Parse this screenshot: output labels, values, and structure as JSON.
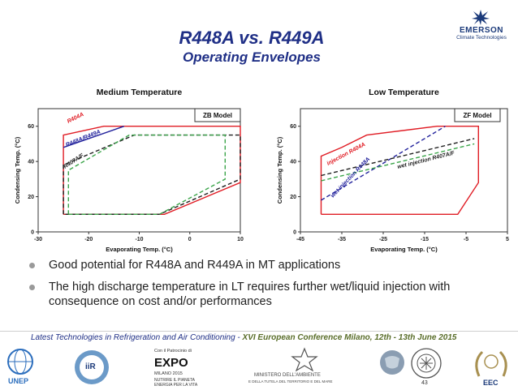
{
  "header": {
    "title": "R448A vs. R449A",
    "subtitle": "Operating Envelopes",
    "logo_name": "EMERSON",
    "logo_sub": "Climate Technologies",
    "brand_color": "#1b3a7a"
  },
  "chart_data": [
    {
      "type": "line",
      "title": "Medium Temperature",
      "model_label": "ZB Model",
      "xlabel": "Evaporating Temp. (°C)",
      "ylabel": "Condensing Temp. (°C)",
      "xlim": [
        -30,
        10
      ],
      "ylim": [
        0,
        70
      ],
      "xticks": [
        -30,
        -20,
        -10,
        0,
        10
      ],
      "yticks": [
        0,
        20,
        40,
        60
      ],
      "grid": false,
      "series": [
        {
          "name": "R404A",
          "color": "#e01c24",
          "dash": "solid",
          "x": [
            -25,
            -25,
            -17,
            10,
            10,
            -5,
            -25
          ],
          "y": [
            10,
            55,
            60,
            60,
            28,
            10,
            10
          ]
        },
        {
          "name": "R448A/R449A",
          "color": "#22229c",
          "dash": "solid",
          "x": [
            -25,
            -13
          ],
          "y": [
            48,
            60
          ]
        },
        {
          "name": "R407A/F",
          "color": "#1f1f1f",
          "dash": "dashed",
          "x": [
            -25,
            -25,
            -11,
            10,
            10,
            -6,
            -25
          ],
          "y": [
            10,
            38,
            55,
            55,
            30,
            10,
            10
          ]
        },
        {
          "name": "",
          "color": "#3ba54a",
          "dash": "dashed",
          "x": [
            -24,
            -24,
            -12,
            7,
            7,
            -6,
            -24
          ],
          "y": [
            10,
            35,
            55,
            55,
            30,
            10,
            10
          ]
        }
      ],
      "annotations": [
        {
          "text": "R404A",
          "color": "#e01c24"
        },
        {
          "text": "R448A/R449A",
          "color": "#22229c"
        },
        {
          "text": "R407A/F",
          "color": "#1f1f1f"
        }
      ]
    },
    {
      "type": "line",
      "title": "Low Temperature",
      "model_label": "ZF Model",
      "xlabel": "Evaporating Temp. (°C)",
      "ylabel": "Condensing Temp. (°C)",
      "xlim": [
        -45,
        5
      ],
      "ylim": [
        0,
        70
      ],
      "xticks": [
        -45,
        -35,
        -25,
        -15,
        -5,
        5
      ],
      "yticks": [
        0,
        20,
        40,
        60
      ],
      "grid": false,
      "series": [
        {
          "name": "R404A",
          "color": "#e01c24",
          "dash": "solid",
          "x": [
            -40,
            -40,
            -35,
            -29,
            -12,
            -2,
            -2,
            -7,
            -37,
            -40
          ],
          "y": [
            10,
            43,
            48,
            55,
            60,
            60,
            28,
            10,
            10,
            10
          ]
        },
        {
          "name": "",
          "color": "#22229c",
          "dash": "dashed",
          "x": [
            -40,
            -10
          ],
          "y": [
            18,
            60
          ]
        },
        {
          "name": "",
          "color": "#1f1f1f",
          "dash": "dashed",
          "x": [
            -40,
            -3
          ],
          "y": [
            32,
            53
          ]
        },
        {
          "name": "",
          "color": "#3ba54a",
          "dash": "dashed",
          "x": [
            -40,
            -3
          ],
          "y": [
            29,
            50
          ]
        }
      ],
      "annotations": [
        {
          "text": "injection R404A",
          "color": "#e01c24"
        },
        {
          "text": "wet injection R407A/F",
          "color": "#1f1f1f"
        },
        {
          "text": "wet injection R448A",
          "color": "#22229c"
        }
      ]
    }
  ],
  "bullets": [
    "Good potential for R448A and R449A in MT applications",
    "The high discharge temperature in LT requires further wet/liquid injection with consequence on cost and/or performances"
  ],
  "footer": {
    "part1": "Latest Technologies in Refrigeration and Air Conditioning - ",
    "part2": "XVI European Conference Milano, 12th - 13th June 2015"
  },
  "logos": {
    "unep": "UNEP",
    "iir": "iiR",
    "expo_patronage": "Con il Patrocinio di",
    "expo": "EXPO",
    "expo_city": "MILANO 2015",
    "expo_tag1": "NUTRIRE IL PIANETA",
    "expo_tag2": "ENERGIA PER LA VITA",
    "ministero": "MINISTERO DELL'AMBIENTE",
    "ministero_sub": "E DELLA TUTELA DEL TERRITORIO E DEL MARE",
    "eec": "EEC",
    "page_number": "43"
  }
}
